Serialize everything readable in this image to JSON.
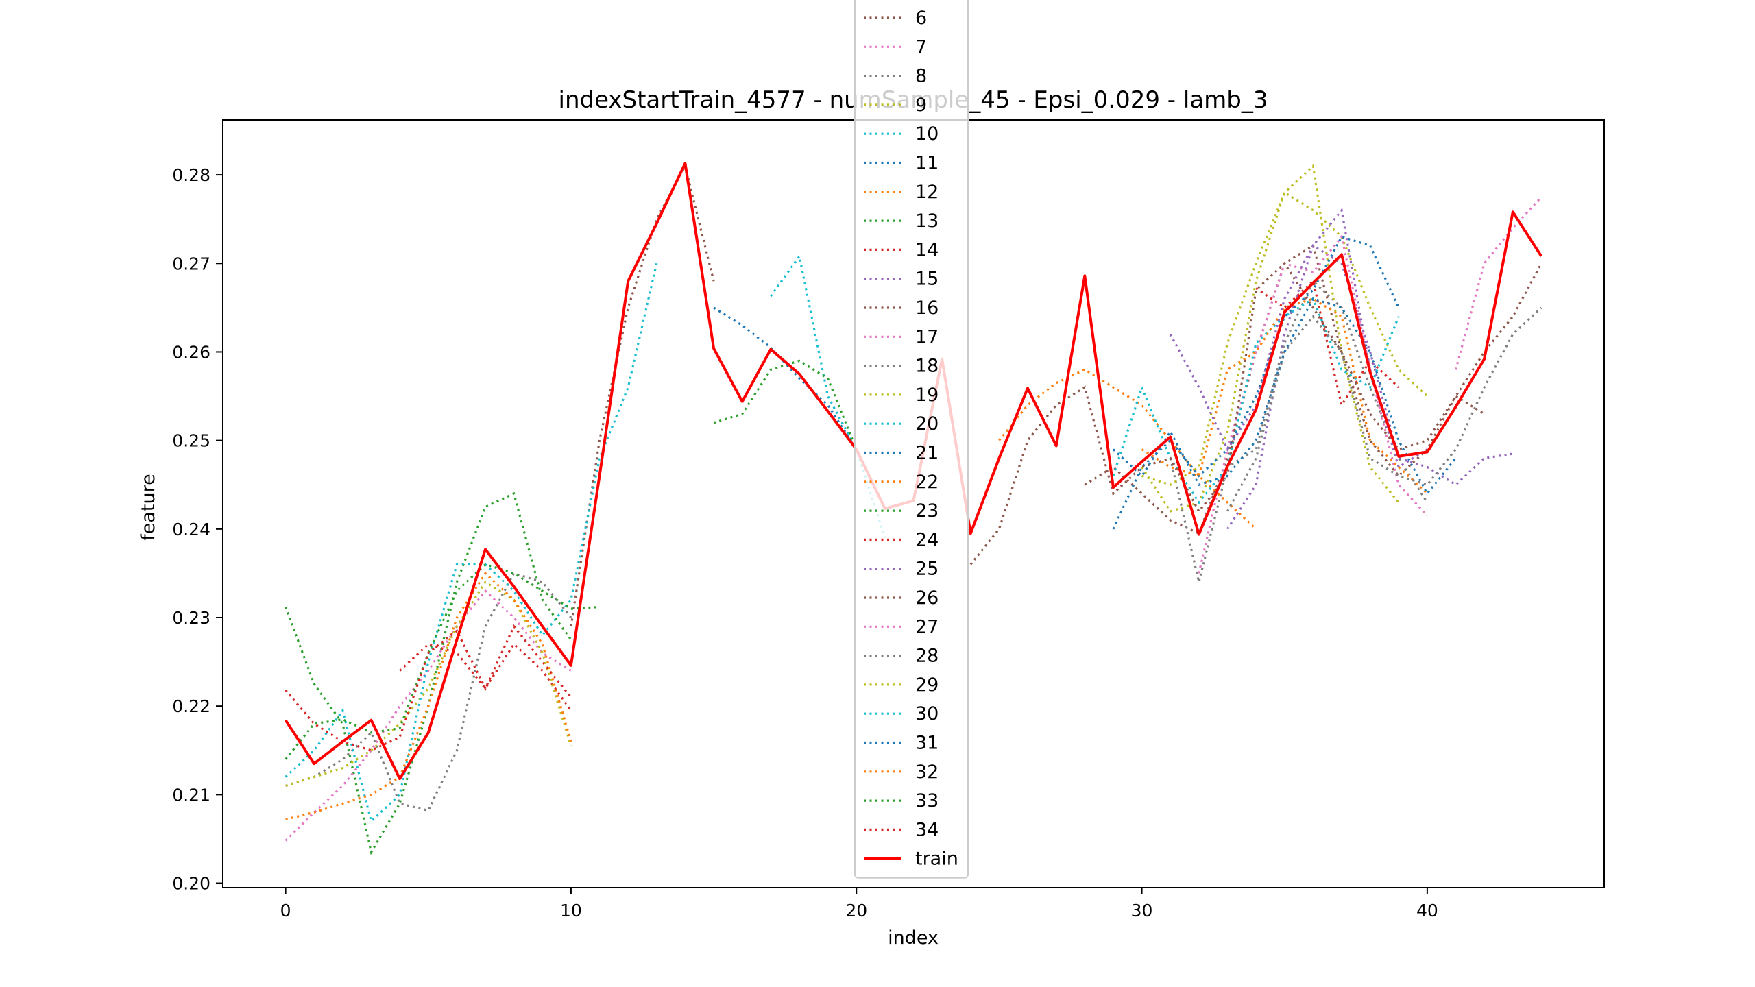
{
  "chart_data": {
    "type": "line",
    "title": "indexStartTrain_4577 - numSample_45 - Epsi_0.029 - lamb_3",
    "xlabel": "index",
    "ylabel": "feature",
    "xlim": [
      -2.2,
      46.2
    ],
    "ylim": [
      0.1995,
      0.2862
    ],
    "xticks": [
      0,
      10,
      20,
      30,
      40
    ],
    "yticks": [
      0.2,
      0.21,
      0.22,
      0.23,
      0.24,
      0.25,
      0.26,
      0.27,
      0.28
    ],
    "ytick_labels": [
      "0.20",
      "0.21",
      "0.22",
      "0.23",
      "0.24",
      "0.25",
      "0.26",
      "0.27",
      "0.28"
    ],
    "grid": false,
    "legend_position": "top-center",
    "train": {
      "name": "train",
      "color": "#ff0000",
      "x": [
        0,
        1,
        2,
        3,
        4,
        5,
        6,
        7,
        8,
        9,
        10,
        11,
        12,
        13,
        14,
        15,
        16,
        17,
        18,
        19,
        20,
        21,
        22,
        23,
        24,
        25,
        26,
        27,
        28,
        29,
        30,
        31,
        32,
        33,
        34,
        35,
        36,
        37,
        38,
        39,
        40,
        41,
        42,
        43,
        44
      ],
      "y": [
        0.2184,
        0.2135,
        0.216,
        0.2184,
        0.2118,
        0.217,
        0.2275,
        0.2377,
        0.2335,
        0.229,
        0.2246,
        0.246,
        0.268,
        0.2745,
        0.2813,
        0.2604,
        0.2544,
        0.2603,
        0.2575,
        0.2533,
        0.249,
        0.2423,
        0.2432,
        0.2592,
        0.2395,
        0.248,
        0.2559,
        0.2494,
        0.2686,
        0.2447,
        0.2476,
        0.2504,
        0.2394,
        0.2471,
        0.2535,
        0.2645,
        0.2678,
        0.271,
        0.2577,
        0.2482,
        0.2487,
        0.2538,
        0.2592,
        0.2758,
        0.2708
      ]
    },
    "predictions": [
      {
        "name": "6",
        "color": "#8c564b",
        "start": 10,
        "y": [
          0.229,
          0.25,
          0.265,
          0.275,
          0.281,
          0.268
        ]
      },
      {
        "name": "7",
        "color": "#e377c2",
        "start": 41,
        "y": [
          0.258,
          0.27,
          0.274,
          0.2775
        ]
      },
      {
        "name": "8",
        "color": "#7f7f7f",
        "start": 0,
        "y": [
          0.211,
          0.212,
          0.214,
          0.217,
          0.209,
          0.2082,
          0.215,
          0.229,
          0.235,
          0.234,
          0.23
        ]
      },
      {
        "name": "9",
        "color": "#bcbd22",
        "start": 30,
        "y": [
          0.247,
          0.242,
          0.243,
          0.251,
          0.268,
          0.278,
          0.276,
          0.273,
          0.265,
          0.258,
          0.255
        ]
      },
      {
        "name": "10",
        "color": "#17becf",
        "start": 17,
        "y": [
          0.2663,
          0.2708,
          0.255,
          0.249,
          0.239
        ]
      },
      {
        "name": "11",
        "color": "#1f77b4",
        "start": 15,
        "y": [
          0.265,
          0.263,
          0.2605,
          0.257,
          0.254,
          0.249
        ]
      },
      {
        "name": "12",
        "color": "#ff7f0e",
        "start": 25,
        "y": [
          0.25,
          0.254,
          0.2565,
          0.258,
          0.256,
          0.254,
          0.25,
          0.246,
          0.243,
          0.24
        ]
      },
      {
        "name": "13",
        "color": "#2ca02c",
        "start": 0,
        "y": [
          0.2312,
          0.2225,
          0.218,
          0.2035,
          0.209,
          0.22,
          0.234,
          0.2425,
          0.244,
          0.232,
          0.2275
        ]
      },
      {
        "name": "14",
        "color": "#d62728",
        "start": 34,
        "y": [
          0.2672,
          0.265,
          0.268,
          0.254,
          0.259,
          0.256
        ]
      },
      {
        "name": "15",
        "color": "#9467bd",
        "start": 33,
        "y": [
          0.24,
          0.245,
          0.262,
          0.272,
          0.27,
          0.26,
          0.248,
          0.247,
          0.245,
          0.248,
          0.2485
        ]
      },
      {
        "name": "16",
        "color": "#8c564b",
        "start": 28,
        "y": [
          0.245,
          0.247,
          0.244,
          0.241,
          0.2395,
          0.248,
          0.26,
          0.27,
          0.272,
          0.26,
          0.25,
          0.246,
          0.249,
          0.255,
          0.26,
          0.264,
          0.27
        ]
      },
      {
        "name": "17",
        "color": "#e377c2",
        "start": 32,
        "y": [
          0.235,
          0.249,
          0.26,
          0.27,
          0.269,
          0.273,
          0.258,
          0.245,
          0.2415
        ]
      },
      {
        "name": "18",
        "color": "#7f7f7f",
        "start": 31,
        "y": [
          0.248,
          0.234,
          0.247,
          0.249,
          0.261,
          0.268,
          0.265,
          0.256,
          0.248,
          0.243
        ]
      },
      {
        "name": "19",
        "color": "#bcbd22",
        "start": 30,
        "y": [
          0.246,
          0.245,
          0.247,
          0.261,
          0.27,
          0.278,
          0.281,
          0.26,
          0.247,
          0.243
        ]
      },
      {
        "name": "20",
        "color": "#17becf",
        "start": 29,
        "y": [
          0.246,
          0.256,
          0.248,
          0.243,
          0.247,
          0.261,
          0.264,
          0.266,
          0.258,
          0.256,
          0.264
        ]
      },
      {
        "name": "21",
        "color": "#1f77b4",
        "start": 29,
        "y": [
          0.24,
          0.247,
          0.25,
          0.246,
          0.249,
          0.255,
          0.264,
          0.267,
          0.273,
          0.272,
          0.265
        ]
      },
      {
        "name": "22",
        "color": "#ff7f0e",
        "start": 30,
        "y": [
          0.249,
          0.247,
          0.246,
          0.258,
          0.26,
          0.265,
          0.266,
          0.264,
          0.25,
          0.247,
          0.244
        ]
      },
      {
        "name": "23",
        "color": "#2ca02c",
        "start": 15,
        "y": [
          0.252,
          0.253,
          0.258,
          0.259,
          0.257,
          0.249
        ]
      },
      {
        "name": "24",
        "color": "#d62728",
        "start": 4,
        "y": [
          0.224,
          0.227,
          0.226,
          0.222,
          0.227,
          0.224,
          0.2195
        ]
      },
      {
        "name": "25",
        "color": "#9467bd",
        "start": 31,
        "y": [
          0.262,
          0.256,
          0.249,
          0.254,
          0.266,
          0.272,
          0.276,
          0.258,
          0.247,
          0.249
        ]
      },
      {
        "name": "26",
        "color": "#8c564b",
        "start": 24,
        "y": [
          0.236,
          0.24,
          0.25,
          0.254,
          0.256,
          0.244,
          0.247,
          0.248,
          0.242,
          0.246,
          0.267,
          0.27,
          0.265,
          0.26,
          0.253,
          0.249,
          0.25,
          0.255,
          0.253
        ]
      },
      {
        "name": "27",
        "color": "#e377c2",
        "start": 0,
        "y": [
          0.2048,
          0.208,
          0.211,
          0.215,
          0.22,
          0.224,
          0.229,
          0.233,
          0.23,
          0.226,
          0.224
        ]
      },
      {
        "name": "28",
        "color": "#7f7f7f",
        "start": 33,
        "y": [
          0.242,
          0.248,
          0.26,
          0.264,
          0.26,
          0.248,
          0.246,
          0.245,
          0.249,
          0.256,
          0.262,
          0.265
        ]
      },
      {
        "name": "29",
        "color": "#bcbd22",
        "start": 0,
        "y": [
          0.211,
          0.212,
          0.213,
          0.215,
          0.218,
          0.222,
          0.229,
          0.234,
          0.232,
          0.226,
          0.2155
        ]
      },
      {
        "name": "30",
        "color": "#17becf",
        "start": 0,
        "y": [
          0.212,
          0.215,
          0.2195,
          0.207,
          0.21,
          0.225,
          0.236,
          0.236,
          0.233,
          0.228,
          0.232,
          0.248,
          0.256,
          0.27
        ]
      },
      {
        "name": "31",
        "color": "#1f77b4",
        "start": 29,
        "y": [
          0.249,
          0.246,
          0.251,
          0.245,
          0.246,
          0.25,
          0.26,
          0.266,
          0.265,
          0.26,
          0.25,
          0.244,
          0.248
        ]
      },
      {
        "name": "32",
        "color": "#ff7f0e",
        "start": 0,
        "y": [
          0.2072,
          0.208,
          0.209,
          0.21,
          0.212,
          0.22,
          0.23,
          0.235,
          0.232,
          0.227,
          0.216
        ]
      },
      {
        "name": "33",
        "color": "#2ca02c",
        "start": 0,
        "y": [
          0.214,
          0.218,
          0.2185,
          0.217,
          0.2175,
          0.226,
          0.233,
          0.236,
          0.235,
          0.233,
          0.231,
          0.2312
        ]
      },
      {
        "name": "34",
        "color": "#d62728",
        "start": 0,
        "y": [
          0.2218,
          0.218,
          0.216,
          0.215,
          0.2165,
          0.226,
          0.2285,
          0.222,
          0.229,
          0.225,
          0.221
        ]
      }
    ]
  }
}
